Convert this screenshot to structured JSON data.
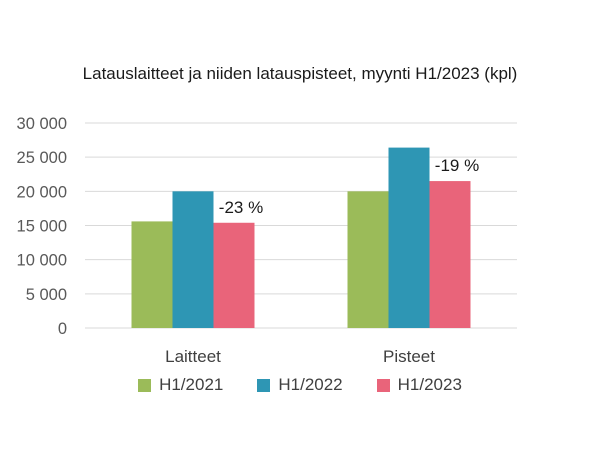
{
  "chart_data": {
    "type": "bar",
    "title": "Latauslaitteet ja niiden latauspisteet, myynti H1/2023 (kpl)",
    "categories": [
      "Laitteet",
      "Pisteet"
    ],
    "series": [
      {
        "name": "H1/2021",
        "color": "#9bbb59",
        "values": [
          15600,
          20000
        ]
      },
      {
        "name": "H1/2022",
        "color": "#2e96b4",
        "values": [
          20000,
          26400
        ]
      },
      {
        "name": "H1/2023",
        "color": "#e9647a",
        "values": [
          15400,
          21500
        ]
      }
    ],
    "annotations": [
      "-23 %",
      "-19 %"
    ],
    "ylim": [
      0,
      30000
    ],
    "yticks": [
      0,
      5000,
      10000,
      15000,
      20000,
      25000,
      30000
    ],
    "ytick_labels": [
      "0",
      "5 000",
      "10 000",
      "15 000",
      "20 000",
      "25 000",
      "30 000"
    ],
    "grid": true,
    "legend": "bottom"
  }
}
